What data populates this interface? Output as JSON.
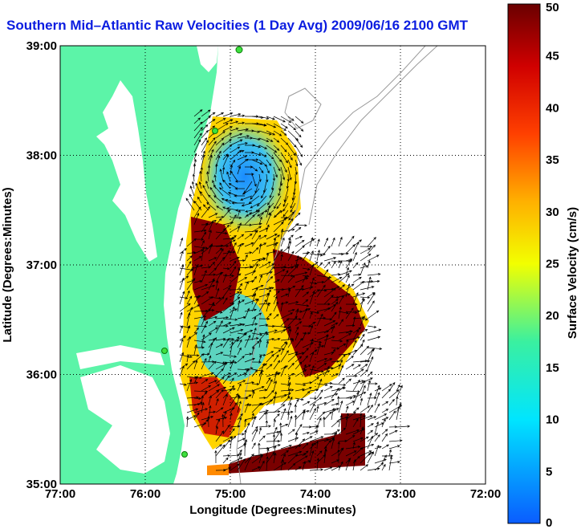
{
  "title": "Southern Mid–Atlantic Raw Velocities (1 Day Avg) 2009/06/16 2100 GMT",
  "map": {
    "xlabel": "Longitude (Degrees:Minutes)",
    "ylabel": "Latitude (Degrees:Minutes)",
    "lon_ticks": [
      "77:00",
      "76:00",
      "75:00",
      "74:00",
      "73:00",
      "72:00"
    ],
    "lat_ticks": [
      "39:00",
      "38:00",
      "37:00",
      "36:00",
      "35:00"
    ],
    "lon_range": [
      -77,
      -72
    ],
    "lat_range": [
      35,
      39
    ],
    "land_color": "#5cf4a8",
    "grid": true
  },
  "colorbar": {
    "label": "Surface Velocity (cm/s)",
    "ticks": [
      "50",
      "45",
      "40",
      "35",
      "30",
      "25",
      "20",
      "15",
      "10",
      "5",
      "0"
    ],
    "range": [
      0,
      50
    ]
  }
}
